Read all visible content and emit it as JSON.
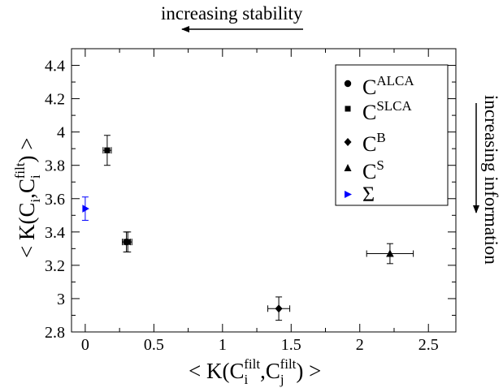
{
  "annotations": {
    "top": "increasing stability",
    "right": "increasing information"
  },
  "chart_data": {
    "type": "scatter",
    "xlabel": "< K(C_i^filt, C_j^filt) >",
    "ylabel": "< K(C_i, C_i^filt) >",
    "xlim": [
      -0.1,
      2.7
    ],
    "ylim": [
      2.8,
      4.5
    ],
    "x_ticks": [
      "0",
      "0.5",
      "1",
      "1.5",
      "2",
      "2.5"
    ],
    "y_ticks": [
      "2.8",
      "3",
      "3.2",
      "3.4",
      "3.6",
      "3.8",
      "4",
      "4.2",
      "4.4"
    ],
    "grid": false,
    "legend_position": "top-right",
    "series": [
      {
        "name": "C^ALCA",
        "marker": "circle",
        "color": "#000000",
        "points": [
          {
            "x": 0.3,
            "y": 3.34,
            "xerr": 0.03,
            "yerr": 0.06
          }
        ]
      },
      {
        "name": "C^SLCA",
        "marker": "square",
        "color": "#000000",
        "points": [
          {
            "x": 0.16,
            "y": 3.89,
            "xerr": 0.03,
            "yerr": 0.09
          },
          {
            "x": 0.31,
            "y": 3.34,
            "xerr": 0.03,
            "yerr": 0.06
          }
        ]
      },
      {
        "name": "C^B",
        "marker": "diamond",
        "color": "#000000",
        "points": [
          {
            "x": 1.41,
            "y": 2.94,
            "xerr": 0.08,
            "yerr": 0.07
          }
        ]
      },
      {
        "name": "C^S",
        "marker": "triangle-up",
        "color": "#000000",
        "points": [
          {
            "x": 2.22,
            "y": 3.27,
            "xerr": 0.17,
            "yerr": 0.06
          }
        ]
      },
      {
        "name": "Σ",
        "marker": "triangle-right",
        "color": "#0000ff",
        "points": [
          {
            "x": 0.0,
            "y": 3.54,
            "xerr": 0.0,
            "yerr": 0.07
          }
        ]
      }
    ]
  }
}
